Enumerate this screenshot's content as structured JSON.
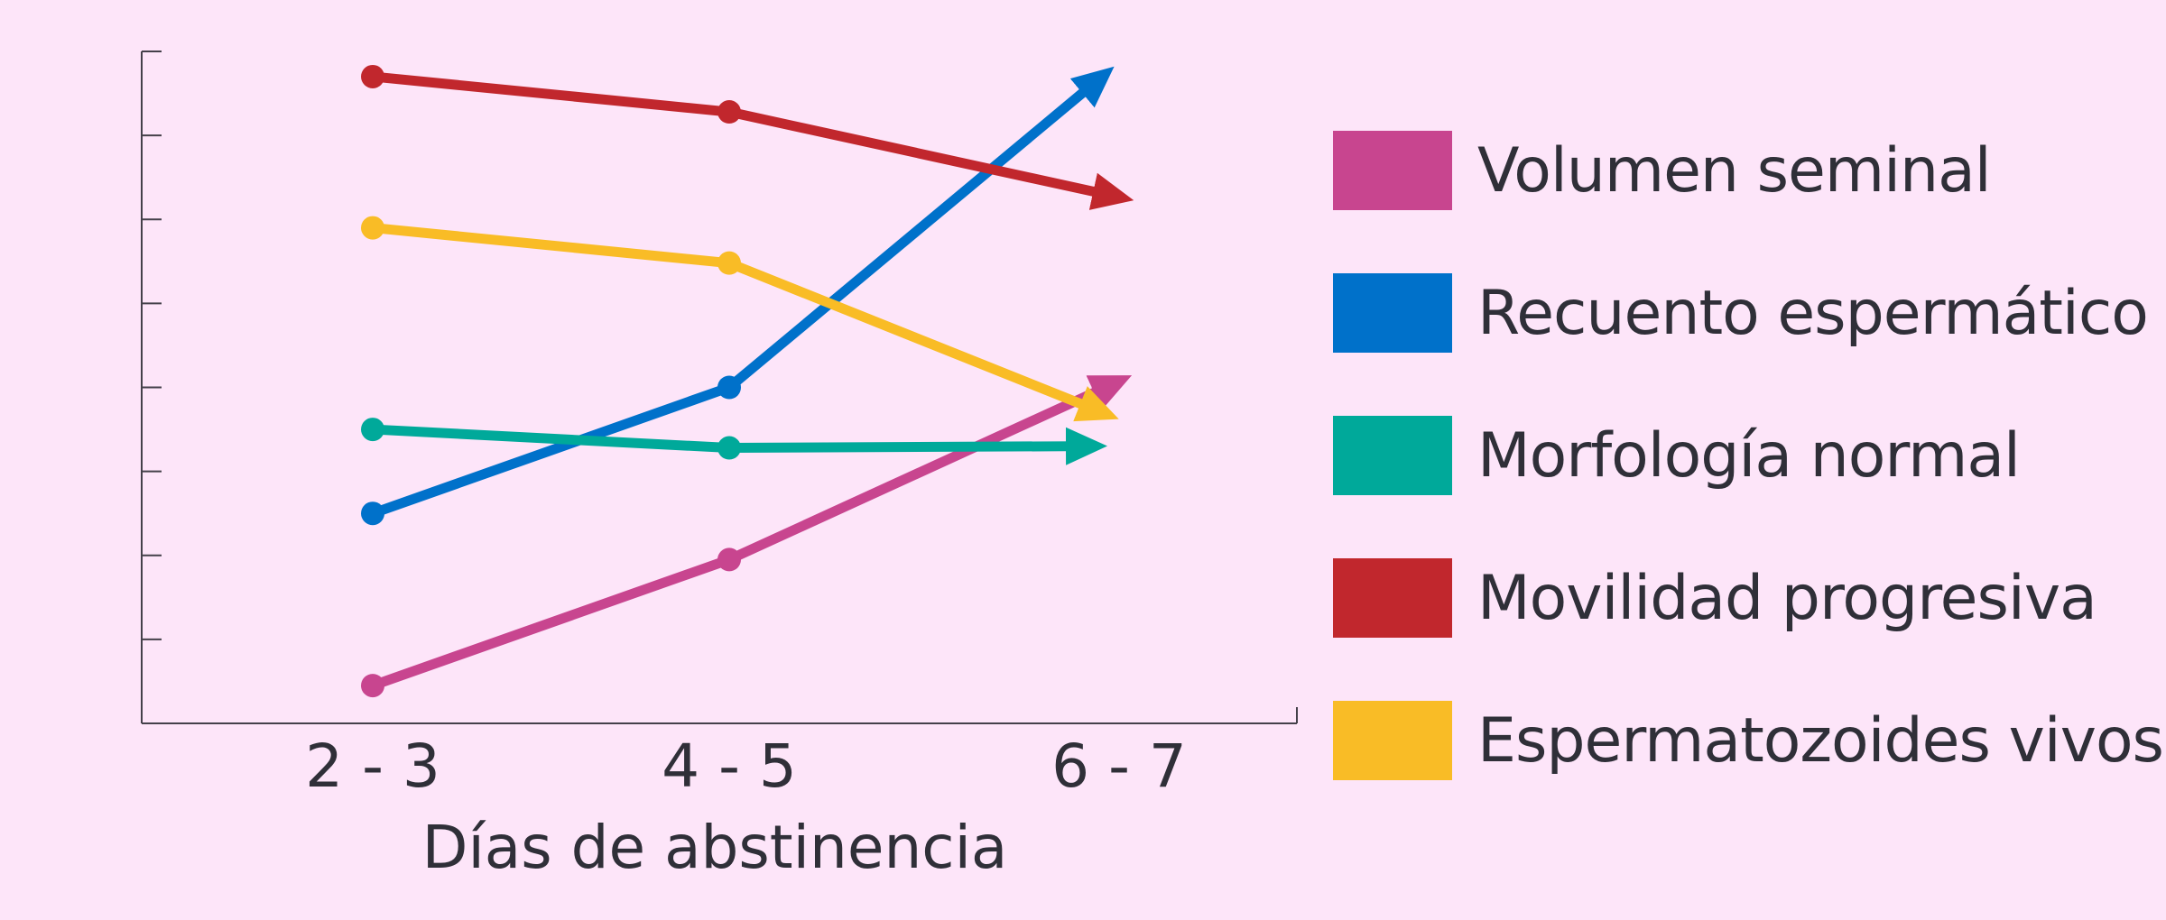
{
  "chart_data": {
    "type": "line",
    "title": "",
    "xlabel": "Días de abstinencia",
    "ylabel": "",
    "categories": [
      "2 - 3",
      "4 - 5",
      "6 - 7"
    ],
    "ylim": [
      0,
      8
    ],
    "y_tick_count": 9,
    "y_tick_labels": "none",
    "grid": false,
    "legend_position": "right",
    "end_markers": "arrowhead",
    "series": [
      {
        "name": "Volumen seminal",
        "color": "#c8458f",
        "values": [
          0.45,
          1.95,
          4.0
        ]
      },
      {
        "name": "Recuento espermático",
        "color": "#0071ca",
        "values": [
          2.5,
          4.0,
          7.6
        ]
      },
      {
        "name": "Morfología normal",
        "color": "#00a99a",
        "values": [
          3.5,
          3.28,
          3.3
        ]
      },
      {
        "name": "Movilidad progresiva",
        "color": "#c1272d",
        "values": [
          7.7,
          7.28,
          6.3
        ]
      },
      {
        "name": "Espermatozoides vivos",
        "color": "#f9bc26",
        "values": [
          5.9,
          5.48,
          3.75
        ]
      }
    ]
  }
}
